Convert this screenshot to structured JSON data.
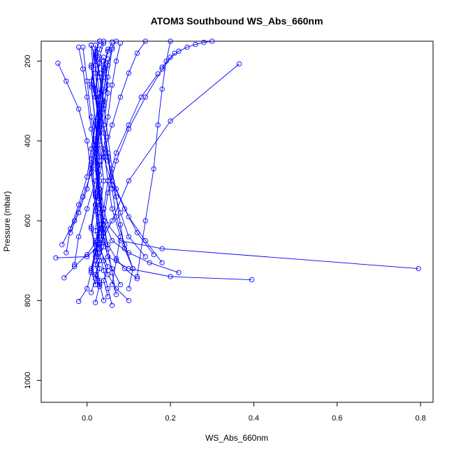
{
  "chart_data": {
    "type": "line",
    "title": "ATOM3 Southbound WS_Abs_660nm",
    "xlabel": "WS_Abs_660nm",
    "ylabel": "Pressure (mbar)",
    "xlim": [
      -0.11,
      0.83
    ],
    "ylim": [
      1055,
      150
    ],
    "y_reversed": true,
    "x_ticks": [
      0.0,
      0.2,
      0.4,
      0.6,
      0.8
    ],
    "x_tick_labels": [
      "0.0",
      "0.2",
      "0.4",
      "0.6",
      "0.8"
    ],
    "y_ticks": [
      200,
      400,
      600,
      800,
      1000
    ],
    "y_tick_labels": [
      "200",
      "400",
      "600",
      "800",
      "1000"
    ],
    "grid": false,
    "legend": "none",
    "line_color": "#0000ff",
    "marker": "open-circle",
    "series": [
      {
        "x": [
          -0.02,
          0.0,
          0.01,
          0.02,
          0.03,
          0.02,
          0.01,
          0.03,
          0.02,
          0.01
        ],
        "y": [
          802,
          770,
          730,
          690,
          640,
          560,
          470,
          380,
          290,
          210
        ]
      },
      {
        "x": [
          0.01,
          0.02,
          0.03,
          0.02,
          0.04,
          0.03,
          0.02,
          0.03,
          0.01,
          0.02
        ],
        "y": [
          780,
          745,
          700,
          650,
          600,
          520,
          430,
          340,
          250,
          185
        ]
      },
      {
        "x": [
          0.02,
          0.03,
          0.01,
          0.02,
          0.03,
          0.02,
          0.03,
          0.02,
          0.03,
          0.04
        ],
        "y": [
          805,
          760,
          720,
          675,
          620,
          540,
          460,
          360,
          280,
          200
        ]
      },
      {
        "x": [
          0.04,
          0.03,
          0.02,
          0.04,
          0.03,
          0.02,
          0.04,
          0.03,
          0.05,
          0.04
        ],
        "y": [
          800,
          755,
          710,
          665,
          610,
          530,
          440,
          350,
          260,
          190
        ]
      },
      {
        "x": [
          0.06,
          0.05,
          0.04,
          0.03,
          0.04,
          0.03,
          0.02,
          0.03,
          0.04,
          0.05
        ],
        "y": [
          812,
          770,
          725,
          680,
          630,
          545,
          455,
          365,
          275,
          195
        ]
      },
      {
        "x": [
          0.08,
          0.06,
          0.05,
          0.04,
          0.03,
          0.04,
          0.03,
          0.04,
          0.05,
          0.06
        ],
        "y": [
          760,
          720,
          690,
          650,
          580,
          500,
          410,
          320,
          240,
          170
        ]
      },
      {
        "x": [
          0.1,
          0.07,
          0.05,
          0.04,
          0.03,
          0.02,
          0.03,
          0.02,
          0.03,
          0.04
        ],
        "y": [
          800,
          770,
          735,
          700,
          655,
          575,
          485,
          395,
          305,
          225
        ]
      },
      {
        "x": [
          0.03,
          0.02,
          0.03,
          0.02,
          0.01,
          0.02,
          0.01,
          0.02,
          0.01,
          0.02
        ],
        "y": [
          765,
          735,
          700,
          660,
          615,
          535,
          445,
          355,
          265,
          180
        ]
      },
      {
        "x": [
          0.05,
          0.04,
          0.05,
          0.03,
          0.02,
          0.03,
          0.02,
          0.03,
          0.02,
          0.03
        ],
        "y": [
          790,
          750,
          715,
          670,
          625,
          545,
          455,
          365,
          275,
          205
        ]
      },
      {
        "x": [
          0.12,
          0.09,
          0.07,
          0.05,
          0.04,
          0.03,
          0.02,
          0.03,
          0.02,
          0.03
        ],
        "y": [
          745,
          720,
          695,
          660,
          620,
          540,
          450,
          360,
          270,
          195
        ]
      },
      {
        "x": [
          0.395,
          0.2,
          0.1,
          0.05,
          0.04,
          0.03,
          0.02,
          0.03,
          0.02,
          0.01
        ],
        "y": [
          748,
          740,
          720,
          690,
          640,
          560,
          470,
          380,
          290,
          160
        ]
      },
      {
        "x": [
          0.795,
          0.18,
          0.08,
          0.05,
          0.04,
          0.03,
          0.02,
          0.03,
          0.02,
          0.02
        ],
        "y": [
          720,
          670,
          650,
          610,
          570,
          500,
          410,
          320,
          230,
          160
        ]
      },
      {
        "x": [
          -0.075,
          0.0,
          0.03,
          0.06,
          0.1,
          0.2,
          0.365
        ],
        "y": [
          693,
          690,
          660,
          600,
          500,
          350,
          207
        ]
      },
      {
        "x": [
          0.22,
          0.15,
          0.1,
          0.06,
          0.04,
          0.03,
          0.02,
          0.01,
          0.0,
          -0.01
        ],
        "y": [
          730,
          705,
          680,
          650,
          600,
          520,
          430,
          340,
          250,
          165
        ]
      },
      {
        "x": [
          -0.055,
          -0.03,
          0.0,
          0.02,
          0.03,
          0.02,
          0.03,
          0.02,
          0.01,
          0.02
        ],
        "y": [
          743,
          715,
          685,
          655,
          610,
          530,
          440,
          350,
          260,
          175
        ]
      },
      {
        "x": [
          -0.07,
          -0.05,
          -0.02,
          0.0,
          0.01,
          0.02,
          0.01,
          0.02,
          0.01,
          0.02
        ],
        "y": [
          205,
          250,
          320,
          400,
          480,
          560,
          620,
          680,
          725,
          760
        ]
      },
      {
        "x": [
          0.21,
          0.18,
          0.14,
          0.1,
          0.07,
          0.05,
          0.04,
          0.03,
          0.02,
          0.03
        ],
        "y": [
          180,
          220,
          290,
          370,
          450,
          530,
          600,
          660,
          710,
          750
        ]
      },
      {
        "x": [
          0.17,
          0.13,
          0.1,
          0.07,
          0.05,
          0.04,
          0.03,
          0.02,
          0.03,
          0.02
        ],
        "y": [
          232,
          290,
          360,
          430,
          500,
          570,
          630,
          680,
          720,
          760
        ]
      },
      {
        "x": [
          0.18,
          0.14,
          0.1,
          0.07,
          0.05,
          0.04,
          0.03,
          0.04,
          0.03,
          0.04
        ],
        "y": [
          705,
          650,
          590,
          520,
          450,
          380,
          310,
          240,
          190,
          155
        ]
      },
      {
        "x": [
          0.14,
          0.1,
          0.08,
          0.06,
          0.04,
          0.03,
          0.04,
          0.03,
          0.02,
          0.03
        ],
        "y": [
          690,
          640,
          580,
          510,
          440,
          370,
          300,
          230,
          180,
          150
        ]
      },
      {
        "x": [
          0.16,
          0.12,
          0.09,
          0.06,
          0.05,
          0.04,
          0.03,
          0.04,
          0.05,
          0.06
        ],
        "y": [
          685,
          630,
          570,
          500,
          430,
          360,
          290,
          220,
          175,
          152
        ]
      },
      {
        "x": [
          -0.05,
          -0.04,
          -0.02,
          0.0,
          0.01,
          0.02,
          0.03,
          0.02,
          0.03,
          0.04
        ],
        "y": [
          680,
          620,
          560,
          490,
          420,
          350,
          280,
          210,
          170,
          150
        ]
      },
      {
        "x": [
          -0.04,
          -0.02,
          0.0,
          0.01,
          0.02,
          0.03,
          0.02,
          0.01,
          0.02,
          0.03
        ],
        "y": [
          630,
          580,
          520,
          460,
          400,
          330,
          270,
          215,
          175,
          150
        ]
      },
      {
        "x": [
          -0.06,
          -0.03,
          -0.01,
          0.01,
          0.02,
          0.03,
          0.04,
          0.05,
          0.06,
          0.07
        ],
        "y": [
          660,
          600,
          540,
          480,
          410,
          340,
          270,
          210,
          165,
          150
        ]
      },
      {
        "x": [
          0.06,
          0.07,
          0.08,
          0.06,
          0.05,
          0.04,
          0.05,
          0.06,
          0.07,
          0.08
        ],
        "y": [
          760,
          700,
          640,
          570,
          500,
          420,
          340,
          260,
          200,
          155
        ]
      },
      {
        "x": [
          0.1,
          0.11,
          0.09,
          0.07,
          0.06,
          0.05,
          0.04,
          0.05,
          0.04,
          0.05
        ],
        "y": [
          770,
          720,
          660,
          590,
          520,
          440,
          360,
          280,
          215,
          170
        ]
      },
      {
        "x": [
          0.11,
          0.09,
          0.08,
          0.07,
          0.06,
          0.05,
          0.04,
          0.03,
          0.02,
          0.01
        ],
        "y": [
          720,
          670,
          610,
          540,
          470,
          390,
          310,
          240,
          190,
          160
        ]
      },
      {
        "x": [
          0.18,
          0.2,
          0.22,
          0.24,
          0.26,
          0.28,
          0.3
        ],
        "y": [
          215,
          190,
          175,
          165,
          158,
          153,
          150
        ]
      },
      {
        "x": [
          0.12,
          0.14,
          0.16,
          0.17,
          0.18,
          0.19,
          0.2
        ],
        "y": [
          740,
          600,
          470,
          360,
          270,
          200,
          150
        ]
      },
      {
        "x": [
          -0.03,
          -0.02,
          0.0,
          0.02,
          0.04,
          0.06,
          0.08,
          0.1,
          0.12,
          0.14
        ],
        "y": [
          710,
          640,
          570,
          500,
          430,
          360,
          290,
          230,
          180,
          150
        ]
      },
      {
        "x": [
          0.07,
          0.06,
          0.05,
          0.04,
          0.03,
          0.02,
          0.01,
          0.0,
          -0.01,
          -0.02
        ],
        "y": [
          785,
          730,
          670,
          600,
          530,
          450,
          370,
          290,
          220,
          165
        ]
      }
    ]
  }
}
